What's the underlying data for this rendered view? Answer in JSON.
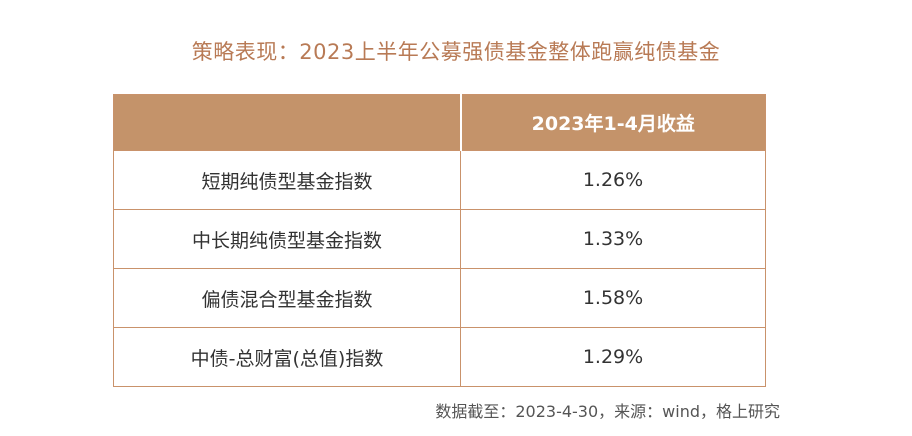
{
  "title": "策略表现：2023上半年公募强债基金整体跑赢纯债基金",
  "table": {
    "header": [
      "",
      "2023年1-4月收益"
    ],
    "rows": [
      {
        "name": "短期纯债型基金指数",
        "value": "1.26%"
      },
      {
        "name": "中长期纯债型基金指数",
        "value": "1.33%"
      },
      {
        "name": "偏债混合型基金指数",
        "value": "1.58%"
      },
      {
        "name": "中债-总财富(总值)指数",
        "value": "1.29%"
      }
    ]
  },
  "footer": "数据截至：2023-4-30，来源：wind，格上研究",
  "colors": {
    "header_bg": "#c4936a",
    "border": "#c9926b",
    "title": "#b87a55"
  }
}
